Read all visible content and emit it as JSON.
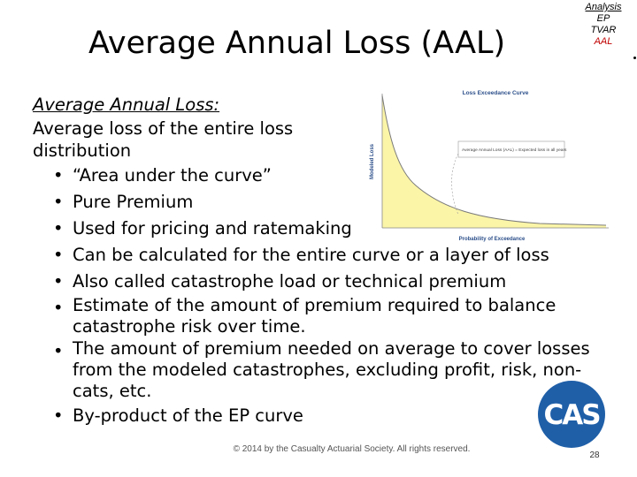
{
  "slide": {
    "title": "Average Annual Loss (AAL)",
    "nav": [
      "Analysis",
      "EP",
      "TVAR",
      "AAL"
    ],
    "subheading": "Average Annual Loss:",
    "intro": [
      "Average loss of the entire loss",
      "distribution"
    ],
    "bullets": [
      "“Area under the curve”",
      "Pure Premium",
      "Used for pricing and ratemaking",
      "Can be calculated for the entire curve or a layer of loss",
      "Also called catastrophe load or technical premium",
      "Estimate of the amount of premium required to balance catastrophe risk over time.",
      "The amount of premium needed on average to cover losses from the modeled catastrophes, excluding profit, risk, non-cats, etc.",
      "By-product of the EP curve"
    ],
    "footer": "© 2014 by the Casualty Actuarial Society. All rights reserved.",
    "page_number": "28",
    "logo_text": "CAS"
  },
  "chart": {
    "title": "Loss Exceedance Curve",
    "xlabel": "Probability of Exceedance",
    "ylabel": "Modeled Loss",
    "callout": "Average Annual Loss (AAL) = Expected loss in all years",
    "fill_color": "#fbf5a8",
    "line_color": "#7a7a7a"
  }
}
